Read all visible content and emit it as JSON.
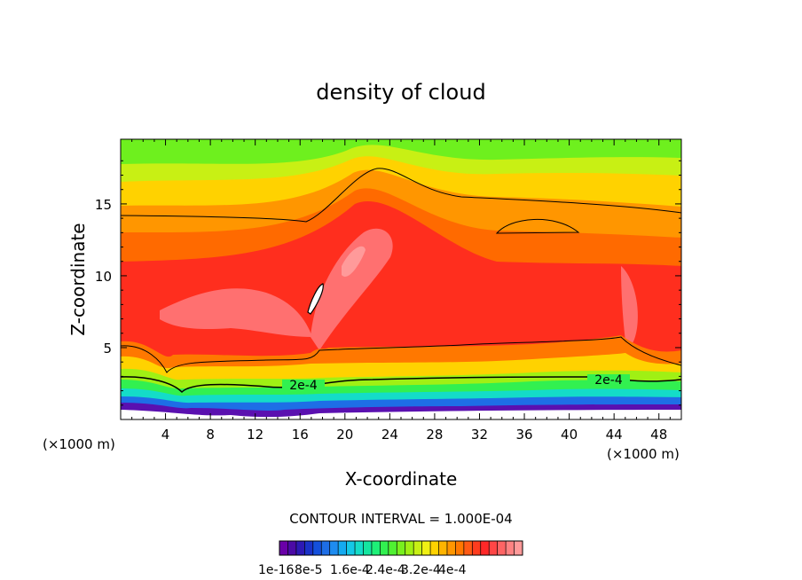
{
  "chart_data": {
    "type": "heatmap",
    "title": "density of cloud",
    "xlabel": "X-coordinate",
    "ylabel": "Z-coordinate",
    "x_unit": "(×1000 m)",
    "xlim": [
      0,
      50
    ],
    "ylim": [
      0,
      19.5
    ],
    "x_ticks": [
      4,
      8,
      12,
      16,
      20,
      24,
      28,
      32,
      36,
      40,
      44,
      48
    ],
    "y_ticks": [
      5,
      10,
      15
    ],
    "contour_interval_label": "CONTOUR INTERVAL = 1.000E-04",
    "contour_labels": [
      "2e-4",
      "2e-4"
    ],
    "colorbar": {
      "tick_labels": [
        "1e-16",
        "8e-5",
        "1.6e-4",
        "2.4e-4",
        "3.2e-4",
        "4e-4"
      ],
      "colors": [
        "#6a00a8",
        "#4b0aa5",
        "#2d19b4",
        "#1a32c8",
        "#1450dc",
        "#1e6ee6",
        "#1e8cf0",
        "#14aaf0",
        "#14c8e6",
        "#14dcc8",
        "#14e6a0",
        "#1ef078",
        "#32f050",
        "#50f032",
        "#78f01e",
        "#a0f014",
        "#c8f014",
        "#f0f014",
        "#ffd200",
        "#ffb400",
        "#ff9600",
        "#ff7800",
        "#ff5a14",
        "#ff3c1e",
        "#ff2828",
        "#ff4646",
        "#ff6464",
        "#ff8282",
        "#ff9a9a"
      ]
    }
  }
}
